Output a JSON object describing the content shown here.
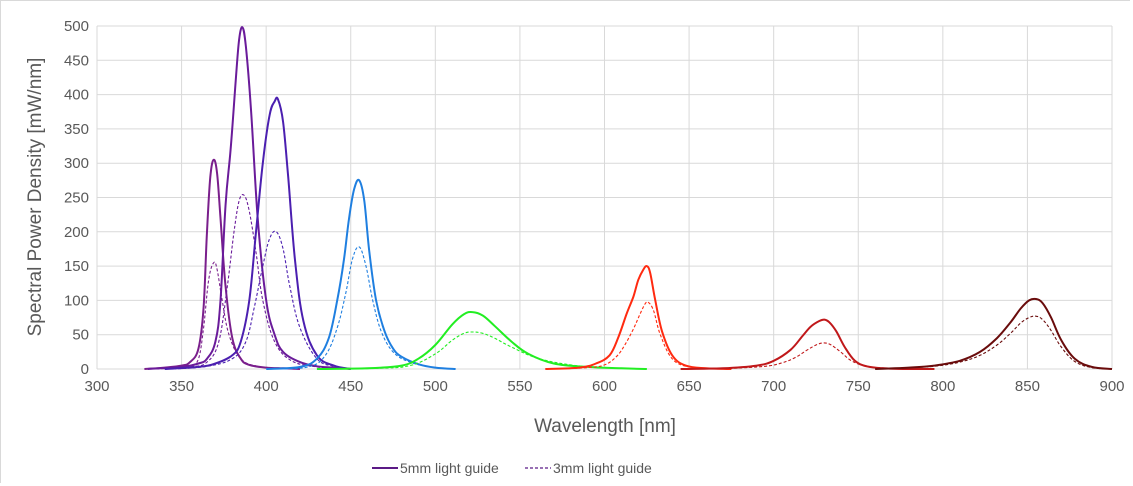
{
  "chart_data": {
    "type": "line",
    "xlabel": "Wavelength [nm]",
    "ylabel": "Spectral Power Density [mW/nm]",
    "xlim": [
      300,
      900
    ],
    "ylim": [
      0,
      500
    ],
    "x_ticks": [
      300,
      350,
      400,
      450,
      500,
      550,
      600,
      650,
      700,
      750,
      800,
      850,
      900
    ],
    "y_ticks": [
      0,
      50,
      100,
      150,
      200,
      250,
      300,
      350,
      400,
      450,
      500
    ],
    "grid": "horizontal and vertical",
    "legend_position": "bottom",
    "legend": [
      {
        "label": "5mm light guide",
        "style": "solid",
        "color": "#5b1a86"
      },
      {
        "label": "3mm light guide",
        "style": "dashed",
        "color": "#5b1a86"
      }
    ],
    "series": [
      {
        "color": "#7a1f8c",
        "style": "solid",
        "x": [
          328,
          340,
          350,
          355,
          360,
          363,
          365,
          367,
          369,
          371,
          373,
          376,
          380,
          385,
          390,
          400,
          410,
          420
        ],
        "y": [
          0,
          2,
          5,
          10,
          30,
          90,
          200,
          280,
          305,
          285,
          220,
          120,
          45,
          15,
          6,
          2,
          1,
          0
        ]
      },
      {
        "color": "#7a1f8c",
        "style": "dashed",
        "x": [
          330,
          345,
          355,
          360,
          363,
          366,
          369,
          371,
          374,
          378,
          385,
          395,
          410
        ],
        "y": [
          0,
          2,
          5,
          15,
          60,
          130,
          155,
          145,
          100,
          50,
          15,
          4,
          0
        ]
      },
      {
        "color": "#6a1b9a",
        "style": "solid",
        "x": [
          330,
          350,
          360,
          365,
          370,
          373,
          376,
          379,
          382,
          384,
          386,
          388,
          391,
          395,
          400,
          405,
          410,
          420,
          430,
          440,
          450
        ],
        "y": [
          0,
          3,
          8,
          15,
          40,
          100,
          240,
          320,
          420,
          480,
          498,
          470,
          380,
          220,
          100,
          50,
          25,
          10,
          4,
          2,
          0
        ]
      },
      {
        "color": "#6a1b9a",
        "style": "dashed",
        "x": [
          335,
          355,
          365,
          372,
          377,
          381,
          384,
          387,
          390,
          394,
          398,
          405,
          415,
          430,
          445
        ],
        "y": [
          0,
          3,
          10,
          40,
          120,
          200,
          245,
          253,
          230,
          170,
          100,
          40,
          12,
          3,
          0
        ]
      },
      {
        "color": "#4b1fb0",
        "style": "solid",
        "x": [
          340,
          360,
          370,
          380,
          385,
          390,
          394,
          398,
          402,
          405,
          407,
          410,
          413,
          417,
          422,
          430,
          440,
          450
        ],
        "y": [
          0,
          3,
          8,
          20,
          40,
          100,
          200,
          300,
          370,
          390,
          393,
          360,
          280,
          160,
          70,
          20,
          5,
          0
        ]
      },
      {
        "color": "#4b1fb0",
        "style": "dashed",
        "x": [
          345,
          365,
          380,
          388,
          393,
          398,
          402,
          406,
          410,
          414,
          420,
          430,
          440,
          450
        ],
        "y": [
          0,
          4,
          15,
          40,
          90,
          150,
          190,
          200,
          175,
          120,
          60,
          15,
          4,
          0
        ]
      },
      {
        "color": "#1f7fe0",
        "style": "solid",
        "x": [
          400,
          420,
          430,
          437,
          442,
          446,
          449,
          452,
          455,
          458,
          461,
          465,
          470,
          475,
          480,
          490,
          500,
          512
        ],
        "y": [
          0,
          3,
          15,
          45,
          100,
          160,
          220,
          262,
          275,
          245,
          170,
          100,
          55,
          30,
          18,
          7,
          2,
          0
        ]
      },
      {
        "color": "#1f7fe0",
        "style": "dashed",
        "x": [
          405,
          425,
          435,
          442,
          447,
          451,
          455,
          459,
          463,
          468,
          475,
          485,
          500,
          512
        ],
        "y": [
          0,
          3,
          20,
          60,
          110,
          160,
          178,
          150,
          100,
          55,
          25,
          10,
          2,
          0
        ]
      },
      {
        "color": "#22ee22",
        "style": "solid",
        "x": [
          430,
          460,
          480,
          490,
          500,
          510,
          517,
          522,
          528,
          535,
          545,
          555,
          570,
          590,
          610,
          625
        ],
        "y": [
          0,
          1,
          5,
          15,
          35,
          65,
          80,
          83,
          78,
          63,
          40,
          22,
          8,
          3,
          1,
          0
        ]
      },
      {
        "color": "#22ee22",
        "style": "dashed",
        "x": [
          435,
          465,
          485,
          500,
          510,
          517,
          522,
          528,
          535,
          545,
          560,
          580,
          600,
          625
        ],
        "y": [
          0,
          1,
          5,
          22,
          42,
          52,
          54,
          52,
          45,
          32,
          16,
          6,
          2,
          0
        ]
      },
      {
        "color": "#ff2a10",
        "style": "solid",
        "x": [
          565,
          585,
          595,
          603,
          608,
          613,
          617,
          620,
          623,
          625,
          627,
          630,
          634,
          640,
          648,
          660,
          675
        ],
        "y": [
          0,
          2,
          8,
          20,
          45,
          80,
          105,
          130,
          145,
          150,
          140,
          100,
          55,
          20,
          5,
          1,
          0
        ]
      },
      {
        "color": "#ff2a10",
        "style": "dashed",
        "x": [
          570,
          590,
          600,
          607,
          612,
          617,
          621,
          624,
          626,
          629,
          633,
          640,
          650,
          665,
          675
        ],
        "y": [
          0,
          2,
          6,
          18,
          35,
          58,
          80,
          95,
          97,
          85,
          50,
          15,
          3,
          1,
          0
        ]
      },
      {
        "color": "#c0181a",
        "style": "solid",
        "x": [
          645,
          670,
          690,
          700,
          710,
          717,
          722,
          727,
          730,
          733,
          737,
          742,
          748,
          755,
          765,
          780,
          795
        ],
        "y": [
          0,
          1,
          5,
          12,
          28,
          48,
          62,
          70,
          72,
          68,
          55,
          32,
          12,
          4,
          1,
          0,
          0
        ]
      },
      {
        "color": "#c0181a",
        "style": "dashed",
        "x": [
          650,
          675,
          695,
          705,
          713,
          720,
          726,
          730,
          734,
          740,
          746,
          755,
          770,
          795
        ],
        "y": [
          0,
          1,
          4,
          9,
          17,
          28,
          36,
          38,
          35,
          24,
          12,
          4,
          1,
          0
        ]
      },
      {
        "color": "#6a0c0c",
        "style": "solid",
        "x": [
          760,
          780,
          795,
          810,
          822,
          832,
          840,
          846,
          851,
          855,
          859,
          864,
          870,
          878,
          888,
          900
        ],
        "y": [
          0,
          2,
          5,
          12,
          25,
          45,
          68,
          88,
          100,
          102,
          96,
          75,
          42,
          15,
          3,
          0
        ]
      },
      {
        "color": "#6a0c0c",
        "style": "dashed",
        "x": [
          760,
          780,
          795,
          810,
          822,
          832,
          840,
          846,
          851,
          855,
          859,
          864,
          870,
          878,
          888,
          900
        ],
        "y": [
          0,
          2,
          4,
          10,
          20,
          35,
          52,
          67,
          75,
          77,
          72,
          56,
          32,
          11,
          2,
          0
        ]
      }
    ]
  }
}
